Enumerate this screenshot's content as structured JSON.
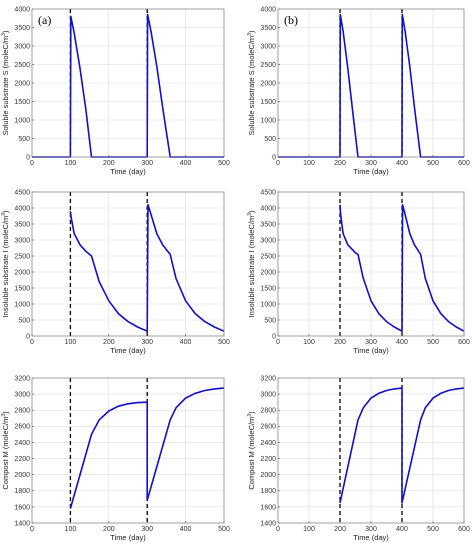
{
  "colors": {
    "line": "#1010c8",
    "event": "#000000",
    "grid": "#dcdcdc",
    "frame": "#7f7f7f"
  },
  "chart_data": [
    {
      "type": "line",
      "panel_label": "(a)",
      "xlabel": "Time (day)",
      "ylabel": "Soluble substrate S (moleC/m",
      "ylabel_sup": "3",
      "ylabel_end": ")",
      "xlim": [
        0,
        500
      ],
      "ylim": [
        0,
        4000
      ],
      "xticks": [
        "0",
        "100",
        "200",
        "300",
        "400",
        "500"
      ],
      "yticks": [
        "0",
        "500",
        "1000",
        "1500",
        "2000",
        "2500",
        "3000",
        "3500",
        "4000"
      ],
      "grid": true,
      "events": [
        100,
        300
      ],
      "series": [
        {
          "x": [
            0,
            100,
            101,
            110,
            125,
            140,
            155,
            300,
            301,
            310,
            325,
            340,
            360,
            500
          ],
          "y": [
            0,
            0,
            3800,
            3350,
            2400,
            1300,
            0,
            0,
            3850,
            3400,
            2450,
            1350,
            0,
            0
          ]
        }
      ]
    },
    {
      "type": "line",
      "panel_label": "(b)",
      "xlabel": "Time (day)",
      "ylabel": "Soluble substrate S (moleC/m",
      "ylabel_sup": "3",
      "ylabel_end": ")",
      "xlim": [
        0,
        600
      ],
      "ylim": [
        0,
        4000
      ],
      "xticks": [
        "0",
        "100",
        "200",
        "300",
        "400",
        "500",
        "600"
      ],
      "yticks": [
        "0",
        "500",
        "1000",
        "1500",
        "2000",
        "2500",
        "3000",
        "3500",
        "4000"
      ],
      "grid": true,
      "events": [
        200,
        400
      ],
      "series": [
        {
          "x": [
            0,
            200,
            201,
            210,
            225,
            240,
            258,
            400,
            401,
            410,
            425,
            440,
            460,
            600
          ],
          "y": [
            0,
            0,
            3850,
            3400,
            2400,
            1300,
            0,
            0,
            3850,
            3400,
            2450,
            1350,
            0,
            0
          ]
        }
      ]
    },
    {
      "type": "line",
      "panel_label": "",
      "xlabel": "Time (day)",
      "ylabel": "Insoluble substrate I (moleC/m",
      "ylabel_sup": "3",
      "ylabel_end": ")",
      "xlim": [
        0,
        500
      ],
      "ylim": [
        0,
        4500
      ],
      "xticks": [
        "0",
        "100",
        "200",
        "300",
        "400",
        "500"
      ],
      "yticks": [
        "0",
        "500",
        "1000",
        "1500",
        "2000",
        "2500",
        "3000",
        "3500",
        "4000",
        "4500"
      ],
      "grid": true,
      "events": [
        100,
        300
      ],
      "series": [
        {
          "x": [
            100,
            102,
            110,
            125,
            140,
            150,
            155,
            175,
            200,
            225,
            250,
            275,
            300,
            302,
            310,
            325,
            340,
            350,
            360,
            375,
            400,
            425,
            450,
            475,
            500
          ],
          "y": [
            3900,
            3700,
            3200,
            2850,
            2650,
            2550,
            2500,
            1700,
            1100,
            700,
            450,
            280,
            150,
            4100,
            3800,
            3200,
            2850,
            2700,
            2550,
            1800,
            1100,
            700,
            450,
            280,
            150
          ]
        }
      ]
    },
    {
      "type": "line",
      "panel_label": "",
      "xlabel": "Time (day)",
      "ylabel": "Insoluble substrate I (moleC/m",
      "ylabel_sup": "3",
      "ylabel_end": ")",
      "xlim": [
        0,
        600
      ],
      "ylim": [
        0,
        4500
      ],
      "xticks": [
        "0",
        "100",
        "200",
        "300",
        "400",
        "500",
        "600"
      ],
      "yticks": [
        "0",
        "500",
        "1000",
        "1500",
        "2000",
        "2500",
        "3000",
        "3500",
        "4000",
        "4500"
      ],
      "grid": true,
      "events": [
        200,
        400
      ],
      "series": [
        {
          "x": [
            200,
            202,
            210,
            225,
            240,
            250,
            258,
            275,
            300,
            325,
            350,
            375,
            400,
            402,
            410,
            425,
            440,
            450,
            460,
            475,
            500,
            525,
            550,
            575,
            600
          ],
          "y": [
            4100,
            3800,
            3200,
            2850,
            2700,
            2600,
            2550,
            1800,
            1100,
            700,
            450,
            280,
            150,
            4100,
            3800,
            3200,
            2850,
            2700,
            2550,
            1800,
            1100,
            700,
            450,
            280,
            150
          ]
        }
      ]
    },
    {
      "type": "line",
      "panel_label": "",
      "xlabel": "Time (day)",
      "ylabel": "Compost M (moleC/m",
      "ylabel_sup": "3",
      "ylabel_end": ")",
      "xlim": [
        0,
        500
      ],
      "ylim": [
        1400,
        3200
      ],
      "xticks": [
        "0",
        "100",
        "200",
        "300",
        "400",
        "500"
      ],
      "yticks": [
        "1400",
        "1600",
        "1800",
        "2000",
        "2200",
        "2400",
        "2600",
        "2800",
        "3000",
        "3200"
      ],
      "grid": true,
      "events": [
        100,
        300
      ],
      "series": [
        {
          "x": [
            100,
            155,
            175,
            200,
            225,
            250,
            275,
            300,
            300,
            360,
            375,
            400,
            425,
            450,
            475,
            500
          ],
          "y": [
            1580,
            2500,
            2680,
            2790,
            2850,
            2880,
            2895,
            2900,
            1680,
            2680,
            2830,
            2950,
            3010,
            3045,
            3065,
            3075
          ]
        }
      ]
    },
    {
      "type": "line",
      "panel_label": "",
      "xlabel": "Time (day)",
      "ylabel": "Compost M (moleC/m",
      "ylabel_sup": "3",
      "ylabel_end": ")",
      "xlim": [
        0,
        600
      ],
      "ylim": [
        1400,
        3200
      ],
      "xticks": [
        "0",
        "100",
        "200",
        "300",
        "400",
        "500",
        "600"
      ],
      "yticks": [
        "1400",
        "1600",
        "1800",
        "2000",
        "2200",
        "2400",
        "2600",
        "2800",
        "3000",
        "3200"
      ],
      "grid": true,
      "events": [
        200,
        400
      ],
      "series": [
        {
          "x": [
            200,
            258,
            275,
            300,
            325,
            350,
            375,
            400,
            400,
            460,
            475,
            500,
            525,
            550,
            575,
            600
          ],
          "y": [
            1650,
            2680,
            2830,
            2950,
            3010,
            3045,
            3065,
            3075,
            1650,
            2680,
            2830,
            2950,
            3010,
            3045,
            3065,
            3075
          ]
        }
      ]
    }
  ]
}
